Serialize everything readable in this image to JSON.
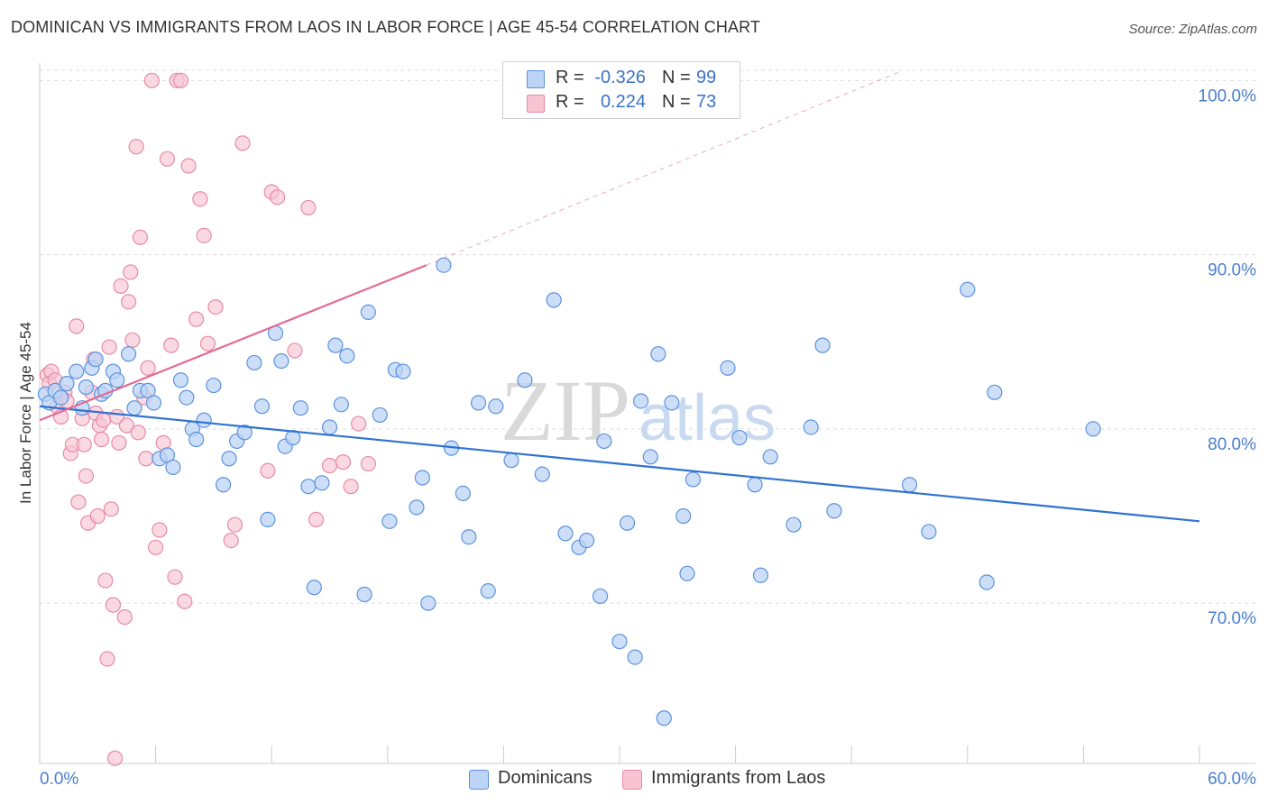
{
  "title": "DOMINICAN VS IMMIGRANTS FROM LAOS IN LABOR FORCE | AGE 45-54 CORRELATION CHART",
  "source": "Source: ZipAtlas.com",
  "watermark": {
    "zip": "ZIP",
    "atlas": "atlas"
  },
  "legend": {
    "rows": [
      {
        "r_label": "R =",
        "r_value": "-0.326",
        "n_label": "N =",
        "n_value": "99"
      },
      {
        "r_label": "R =",
        "r_value": "0.224",
        "n_label": "N =",
        "n_value": "73"
      }
    ]
  },
  "bottom_legend": [
    "Dominicans",
    "Immigrants from Laos"
  ],
  "colors": {
    "blue_fill": "#bcd4f6",
    "blue_stroke": "#5b92de",
    "blue_line": "#2f73d0",
    "pink_fill": "#f8c4d4",
    "pink_stroke": "#e88aa6",
    "pink_line": "#e36b93",
    "grid": "#dddddd",
    "tick_label": "#4a7fd0"
  },
  "chart_data": {
    "type": "scatter",
    "title": "DOMINICAN VS IMMIGRANTS FROM LAOS IN LABOR FORCE | AGE 45-54 CORRELATION CHART",
    "xlabel": "",
    "ylabel": "In Labor Force | Age 45-54",
    "xlim": [
      0,
      60
    ],
    "ylim": [
      60.8,
      101
    ],
    "x_tick_labels": [
      "0.0%",
      "60.0%"
    ],
    "y_ticks": [
      70,
      80,
      90,
      100
    ],
    "y_tick_labels": [
      "70.0%",
      "80.0%",
      "90.0%",
      "100.0%"
    ],
    "grid": true,
    "legend_position": "top-center",
    "series": [
      {
        "name": "Dominicans",
        "r": -0.326,
        "n": 99,
        "trend": {
          "x": [
            0,
            60
          ],
          "y": [
            81.3,
            74.7
          ]
        },
        "points": [
          [
            0.3,
            82.0
          ],
          [
            0.5,
            81.5
          ],
          [
            0.8,
            82.2
          ],
          [
            1.1,
            81.8
          ],
          [
            1.4,
            82.6
          ],
          [
            1.9,
            83.3
          ],
          [
            2.2,
            81.2
          ],
          [
            2.4,
            82.4
          ],
          [
            2.7,
            83.5
          ],
          [
            2.9,
            84.0
          ],
          [
            3.2,
            82.0
          ],
          [
            3.4,
            82.2
          ],
          [
            3.8,
            83.3
          ],
          [
            4.0,
            82.8
          ],
          [
            4.6,
            84.3
          ],
          [
            4.9,
            81.2
          ],
          [
            5.2,
            82.2
          ],
          [
            5.6,
            82.2
          ],
          [
            5.9,
            81.5
          ],
          [
            6.2,
            78.3
          ],
          [
            6.6,
            78.5
          ],
          [
            6.9,
            77.8
          ],
          [
            7.3,
            82.8
          ],
          [
            7.6,
            81.8
          ],
          [
            7.9,
            80.0
          ],
          [
            8.1,
            79.4
          ],
          [
            8.5,
            80.5
          ],
          [
            9.0,
            82.5
          ],
          [
            9.5,
            76.8
          ],
          [
            9.8,
            78.3
          ],
          [
            10.2,
            79.3
          ],
          [
            10.6,
            79.8
          ],
          [
            11.1,
            83.8
          ],
          [
            11.5,
            81.3
          ],
          [
            11.8,
            74.8
          ],
          [
            12.2,
            85.5
          ],
          [
            12.5,
            83.9
          ],
          [
            12.7,
            79.0
          ],
          [
            13.1,
            79.5
          ],
          [
            13.5,
            81.2
          ],
          [
            13.9,
            76.7
          ],
          [
            14.2,
            70.9
          ],
          [
            14.6,
            76.9
          ],
          [
            15.0,
            80.1
          ],
          [
            15.3,
            84.8
          ],
          [
            15.6,
            81.4
          ],
          [
            15.9,
            84.2
          ],
          [
            16.8,
            70.5
          ],
          [
            17.0,
            86.7
          ],
          [
            17.6,
            80.8
          ],
          [
            18.1,
            74.7
          ],
          [
            18.4,
            83.4
          ],
          [
            18.8,
            83.3
          ],
          [
            19.5,
            75.5
          ],
          [
            19.8,
            77.2
          ],
          [
            20.1,
            70.0
          ],
          [
            20.9,
            89.4
          ],
          [
            21.3,
            78.9
          ],
          [
            21.9,
            76.3
          ],
          [
            22.2,
            73.8
          ],
          [
            22.7,
            81.5
          ],
          [
            23.2,
            70.7
          ],
          [
            23.6,
            81.3
          ],
          [
            24.4,
            78.2
          ],
          [
            25.1,
            82.8
          ],
          [
            26.0,
            77.4
          ],
          [
            26.6,
            87.4
          ],
          [
            27.2,
            74.0
          ],
          [
            27.9,
            73.2
          ],
          [
            28.3,
            73.6
          ],
          [
            29.0,
            70.4
          ],
          [
            29.2,
            79.3
          ],
          [
            30.0,
            67.8
          ],
          [
            30.4,
            74.6
          ],
          [
            30.8,
            66.9
          ],
          [
            31.1,
            81.6
          ],
          [
            31.6,
            78.4
          ],
          [
            32.0,
            84.3
          ],
          [
            32.3,
            63.4
          ],
          [
            32.7,
            81.5
          ],
          [
            33.3,
            75.0
          ],
          [
            33.5,
            71.7
          ],
          [
            33.8,
            77.1
          ],
          [
            35.6,
            83.5
          ],
          [
            36.2,
            79.5
          ],
          [
            37.0,
            76.8
          ],
          [
            37.3,
            71.6
          ],
          [
            37.8,
            78.4
          ],
          [
            39.0,
            74.5
          ],
          [
            39.9,
            80.1
          ],
          [
            40.5,
            84.8
          ],
          [
            41.1,
            75.3
          ],
          [
            45.0,
            76.8
          ],
          [
            46.0,
            74.1
          ],
          [
            48.0,
            88.0
          ],
          [
            49.0,
            71.2
          ],
          [
            49.4,
            82.1
          ],
          [
            54.5,
            80.0
          ]
        ]
      },
      {
        "name": "Immigrants from Laos",
        "r": 0.224,
        "n": 73,
        "trend": {
          "x": [
            0,
            20
          ],
          "y": [
            80.5,
            89.4
          ]
        },
        "trend_extension": {
          "x": [
            20,
            44.5
          ],
          "y": [
            89.4,
            100.5
          ]
        },
        "points": [
          [
            0.4,
            83.1
          ],
          [
            0.5,
            82.6
          ],
          [
            0.6,
            83.3
          ],
          [
            0.8,
            82.8
          ],
          [
            0.9,
            81.3
          ],
          [
            1.1,
            80.7
          ],
          [
            1.3,
            82.1
          ],
          [
            1.4,
            81.6
          ],
          [
            1.6,
            78.6
          ],
          [
            1.7,
            79.1
          ],
          [
            1.9,
            85.9
          ],
          [
            2.0,
            75.8
          ],
          [
            2.2,
            80.6
          ],
          [
            2.3,
            79.1
          ],
          [
            2.4,
            77.3
          ],
          [
            2.5,
            74.6
          ],
          [
            2.7,
            82.1
          ],
          [
            2.8,
            84.0
          ],
          [
            2.9,
            80.9
          ],
          [
            3.0,
            75.0
          ],
          [
            3.1,
            80.2
          ],
          [
            3.2,
            79.4
          ],
          [
            3.3,
            80.5
          ],
          [
            3.4,
            71.3
          ],
          [
            3.5,
            66.8
          ],
          [
            3.6,
            84.7
          ],
          [
            3.7,
            75.4
          ],
          [
            3.8,
            69.9
          ],
          [
            3.9,
            61.1
          ],
          [
            4.0,
            80.7
          ],
          [
            4.1,
            79.2
          ],
          [
            4.2,
            88.2
          ],
          [
            4.4,
            69.2
          ],
          [
            4.5,
            80.2
          ],
          [
            4.6,
            87.3
          ],
          [
            4.7,
            89.0
          ],
          [
            4.8,
            85.1
          ],
          [
            5.0,
            96.2
          ],
          [
            5.1,
            79.8
          ],
          [
            5.2,
            91.0
          ],
          [
            5.4,
            81.8
          ],
          [
            5.5,
            78.3
          ],
          [
            5.6,
            83.5
          ],
          [
            5.8,
            100.0
          ],
          [
            6.0,
            73.2
          ],
          [
            6.2,
            74.2
          ],
          [
            6.4,
            79.2
          ],
          [
            6.6,
            95.5
          ],
          [
            6.8,
            84.8
          ],
          [
            7.0,
            71.5
          ],
          [
            7.1,
            100.0
          ],
          [
            7.3,
            100.0
          ],
          [
            7.5,
            70.1
          ],
          [
            7.7,
            95.1
          ],
          [
            8.1,
            86.3
          ],
          [
            8.3,
            93.2
          ],
          [
            8.5,
            91.1
          ],
          [
            8.7,
            84.9
          ],
          [
            9.1,
            87.0
          ],
          [
            9.9,
            73.6
          ],
          [
            10.1,
            74.5
          ],
          [
            10.5,
            96.4
          ],
          [
            11.8,
            77.6
          ],
          [
            12.0,
            93.6
          ],
          [
            12.3,
            93.3
          ],
          [
            13.2,
            84.5
          ],
          [
            13.9,
            92.7
          ],
          [
            14.3,
            74.8
          ],
          [
            15.0,
            77.9
          ],
          [
            15.7,
            78.1
          ],
          [
            16.1,
            76.7
          ],
          [
            16.5,
            80.3
          ],
          [
            17.0,
            78.0
          ]
        ]
      }
    ]
  }
}
